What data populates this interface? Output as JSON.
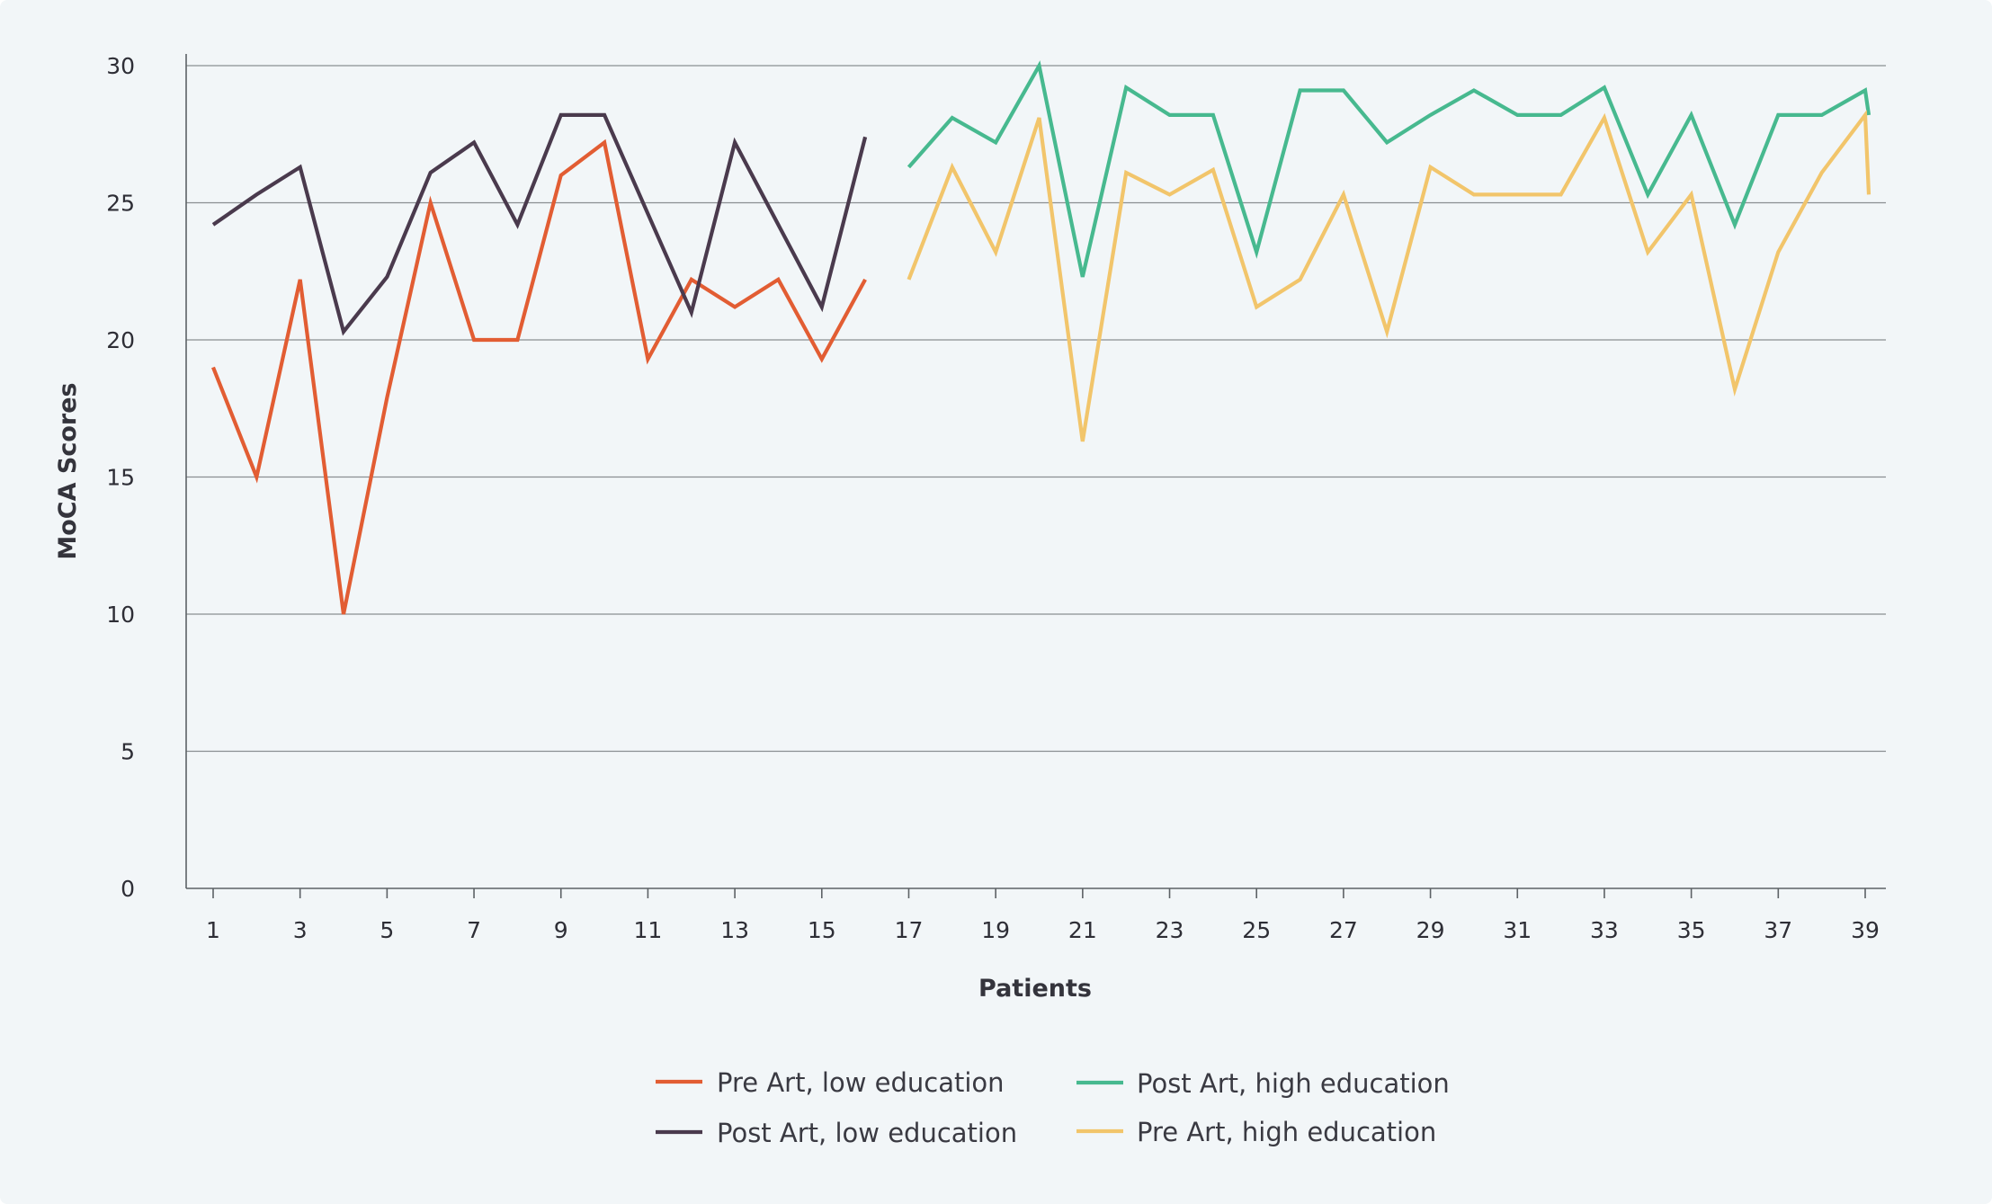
{
  "chart_data": {
    "type": "line",
    "title": "",
    "xlabel": "Patients",
    "ylabel": "MoCA  Scores",
    "ylim": [
      0,
      30
    ],
    "yticks": [
      0,
      5,
      10,
      15,
      20,
      25,
      30
    ],
    "xticks": [
      1,
      3,
      5,
      7,
      9,
      11,
      13,
      15,
      17,
      19,
      21,
      23,
      25,
      27,
      29,
      31,
      33,
      35,
      37,
      39
    ],
    "xlim": [
      1,
      39
    ],
    "grid": "horizontal",
    "legend_position": "bottom-center",
    "series": [
      {
        "name": "Pre Art,  low education",
        "color": "#e25d33",
        "x": [
          1,
          2,
          3,
          4,
          5,
          6,
          7,
          8,
          9,
          10,
          11,
          12,
          13,
          14,
          15,
          16
        ],
        "values": [
          19,
          15,
          22.2,
          10,
          17.9,
          25,
          20,
          20,
          26,
          27.2,
          19.3,
          22.2,
          21.2,
          22.2,
          19.3,
          22.2
        ]
      },
      {
        "name": "Post Art, low education",
        "color": "#4a3a4d",
        "x": [
          1,
          2,
          3,
          4,
          5,
          6,
          7,
          8,
          9,
          10,
          11,
          12,
          13,
          14,
          15,
          16
        ],
        "values": [
          24.2,
          25.3,
          26.3,
          20.3,
          22.3,
          26.1,
          27.2,
          24.2,
          28.2,
          28.2,
          24.6,
          21,
          27.2,
          24.2,
          21.2,
          27.4
        ]
      },
      {
        "name": "Post Art, high education",
        "color": "#47b98f",
        "x": [
          17,
          18,
          19,
          20,
          21,
          22,
          23,
          24,
          25,
          26,
          27,
          28,
          29,
          30,
          31,
          32,
          33,
          34,
          35,
          36,
          37,
          38,
          39,
          40
        ],
        "values": [
          26.3,
          28.1,
          27.2,
          30,
          22.3,
          29.2,
          28.2,
          28.2,
          23.2,
          29.1,
          29.1,
          27.2,
          28.2,
          29.1,
          28.2,
          28.2,
          29.2,
          25.3,
          28.2,
          24.2,
          28.2,
          28.2,
          29.1,
          28.2
        ]
      },
      {
        "name": "Pre Art,  high education",
        "color": "#f2c56b",
        "x": [
          17,
          18,
          19,
          20,
          21,
          22,
          23,
          24,
          25,
          26,
          27,
          28,
          29,
          30,
          31,
          32,
          33,
          34,
          35,
          36,
          37,
          38,
          39,
          40
        ],
        "values": [
          22.2,
          26.3,
          23.2,
          28.1,
          16.3,
          26.1,
          25.3,
          26.2,
          21.2,
          22.2,
          25.3,
          20.3,
          26.3,
          25.3,
          25.3,
          25.3,
          28.1,
          23.2,
          25.3,
          18.2,
          23.2,
          26.1,
          28.2,
          25.3
        ]
      }
    ]
  },
  "legend": {
    "items": [
      {
        "label": "Pre Art,  low education",
        "color": "#e25d33"
      },
      {
        "label": "Post Art, low education",
        "color": "#4a3a4d"
      },
      {
        "label": "Post Art, high education",
        "color": "#47b98f"
      },
      {
        "label": "Pre Art,  high education",
        "color": "#f2c56b"
      }
    ]
  }
}
